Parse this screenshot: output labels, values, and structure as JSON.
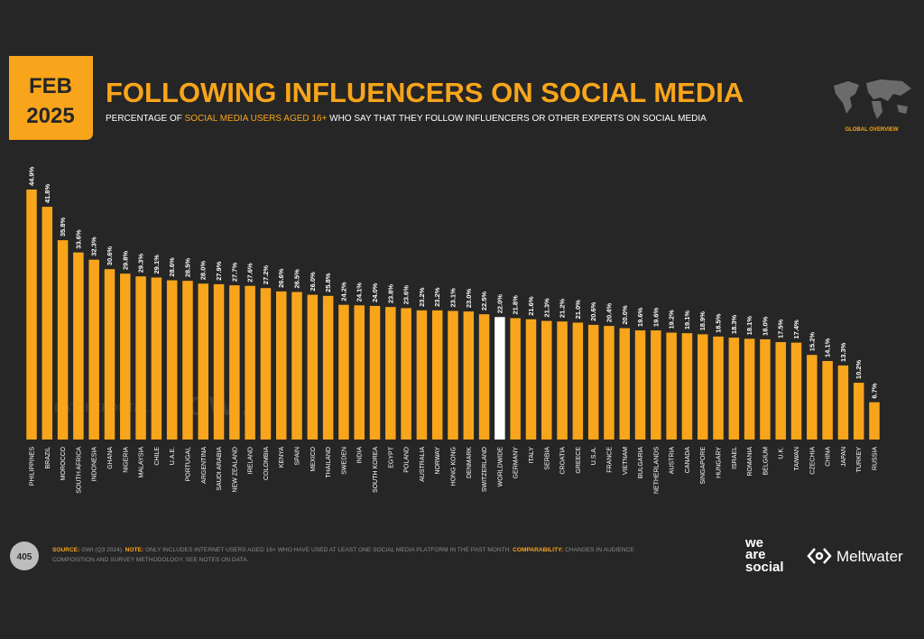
{
  "badge": {
    "month": "FEB",
    "year": "2025"
  },
  "chart_data": {
    "type": "bar",
    "title": "FOLLOWING INFLUENCERS ON SOCIAL MEDIA",
    "subtitle": [
      "PERCENTAGE OF ",
      "SOCIAL MEDIA USERS AGED 16+",
      " WHO SAY THAT THEY FOLLOW INFLUENCERS OR OTHER EXPERTS ON SOCIAL MEDIA"
    ],
    "categories": [
      "PHILIPPINES",
      "BRAZIL",
      "MOROCCO",
      "SOUTH AFRICA",
      "INDONESIA",
      "GHANA",
      "NIGERIA",
      "MALAYSIA",
      "CHILE",
      "U.A.E.",
      "PORTUGAL",
      "ARGENTINA",
      "SAUDI ARABIA",
      "NEW ZEALAND",
      "IRELAND",
      "COLOMBIA",
      "KENYA",
      "SPAIN",
      "MEXICO",
      "THAILAND",
      "SWEDEN",
      "INDIA",
      "SOUTH KOREA",
      "EGYPT",
      "POLAND",
      "AUSTRALIA",
      "NORWAY",
      "HONG KONG",
      "DENMARK",
      "SWITZERLAND",
      "WORLDWIDE",
      "GERMANY",
      "ITALY",
      "SERBIA",
      "CROATIA",
      "GREECE",
      "U.S.A.",
      "FRANCE",
      "VIETNAM",
      "BULGARIA",
      "NETHERLANDS",
      "AUSTRIA",
      "CANADA",
      "SINGAPORE",
      "HUNGARY",
      "ISRAEL",
      "ROMANIA",
      "BELGIUM",
      "U.K.",
      "TAIWAN",
      "CZECHIA",
      "CHINA",
      "JAPAN",
      "TURKEY",
      "RUSSIA"
    ],
    "values": [
      44.9,
      41.8,
      35.8,
      33.6,
      32.3,
      30.6,
      29.8,
      29.3,
      29.1,
      28.6,
      28.5,
      28.0,
      27.9,
      27.7,
      27.6,
      27.2,
      26.6,
      26.5,
      26.0,
      25.8,
      24.2,
      24.1,
      24.0,
      23.8,
      23.6,
      23.2,
      23.2,
      23.1,
      23.0,
      22.5,
      22.0,
      21.8,
      21.6,
      21.3,
      21.2,
      21.0,
      20.6,
      20.4,
      20.0,
      19.6,
      19.6,
      19.2,
      19.1,
      18.9,
      18.5,
      18.3,
      18.1,
      18.0,
      17.5,
      17.4,
      15.2,
      14.1,
      13.3,
      10.2,
      6.7
    ],
    "value_labels": [
      "44.9%",
      "41.8%",
      "35.8%",
      "33.6%",
      "32.3%",
      "30.6%",
      "29.8%",
      "29.3%",
      "29.1%",
      "28.6%",
      "28.5%",
      "28.0%",
      "27.9%",
      "27.7%",
      "27.6%",
      "27.2%",
      "26.6%",
      "26.5%",
      "26.0%",
      "25.8%",
      "24.2%",
      "24.1%",
      "24.0%",
      "23.8%",
      "23.6%",
      "23.2%",
      "23.2%",
      "23.1%",
      "23.0%",
      "22.5%",
      "22.0%",
      "21.8%",
      "21.6%",
      "21.3%",
      "21.2%",
      "21.0%",
      "20.6%",
      "20.4%",
      "20.0%",
      "19.6%",
      "19.6%",
      "19.2%",
      "19.1%",
      "18.9%",
      "18.5%",
      "18.3%",
      "18.1%",
      "18.0%",
      "17.5%",
      "17.4%",
      "15.2%",
      "14.1%",
      "13.3%",
      "10.2%",
      "6.7%"
    ],
    "color": "#f8a51b",
    "highlight_category": "WORLDWIDE",
    "highlight_color": "#ffffff"
  },
  "corner": "GLOBAL OVERVIEW",
  "watermark": [
    "DATAREPORTAL",
    "GWI."
  ],
  "page_number": "405",
  "footer": {
    "line1": [
      "SOURCE:",
      " GWI (Q3 2024). ",
      "NOTE:",
      " ONLY INCLUDES INTERNET USERS AGED 16+ WHO HAVE USED AT LEAST ONE SOCIAL MEDIA PLATFORM IN THE PAST MONTH. ",
      "COMPARABILITY:",
      " CHANGES IN AUDIENCE"
    ],
    "line2": "COMPOSITION AND SURVEY METHODOLOGY. SEE NOTES ON DATA."
  },
  "logos": {
    "we_are_social": [
      "we",
      "are",
      "social"
    ],
    "meltwater": "Meltwater"
  }
}
